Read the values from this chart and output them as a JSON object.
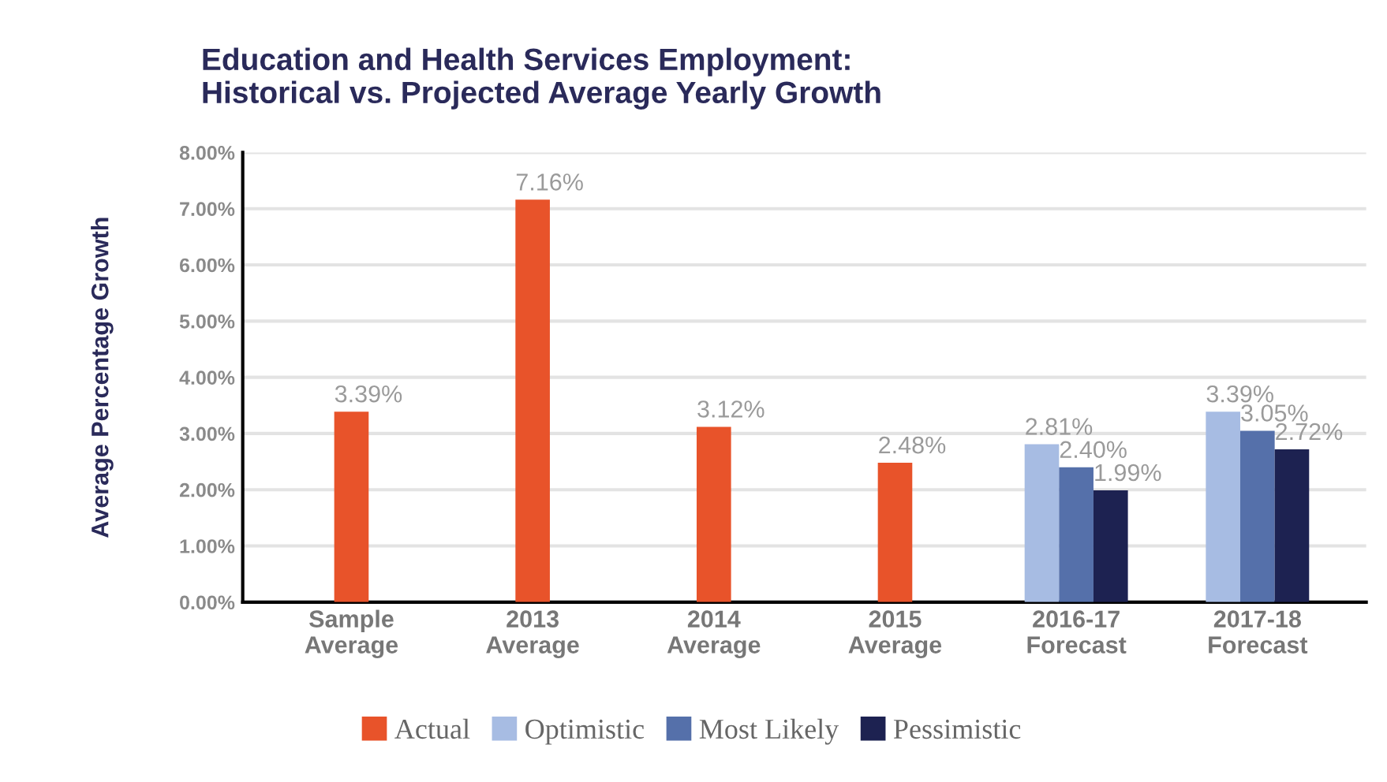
{
  "chart_data": {
    "type": "bar",
    "title": "Education and Health Services Employment:\nHistorical vs. Projected Average Yearly Growth",
    "ylabel": "Average Percentage Growth",
    "categories": [
      "Sample\nAverage",
      "2013\nAverage",
      "2014\nAverage",
      "2015\nAverage",
      "2016-17\nForecast",
      "2017-18\nForecast"
    ],
    "series": [
      {
        "name": "Actual",
        "color": "#e8532a",
        "values": [
          3.39,
          7.16,
          3.12,
          2.48,
          null,
          null
        ],
        "value_labels": [
          "3.39%",
          "7.16%",
          "3.12%",
          "2.48%",
          null,
          null
        ]
      },
      {
        "name": "Optimistic",
        "color": "#a7bce3",
        "values": [
          null,
          null,
          null,
          null,
          2.81,
          3.39
        ],
        "value_labels": [
          null,
          null,
          null,
          null,
          "2.81%",
          "3.39%"
        ]
      },
      {
        "name": "Most Likely",
        "color": "#5570aa",
        "values": [
          null,
          null,
          null,
          null,
          2.4,
          3.05
        ],
        "value_labels": [
          null,
          null,
          null,
          null,
          "2.40%",
          "3.05%"
        ]
      },
      {
        "name": "Pessimistic",
        "color": "#1d2251",
        "values": [
          null,
          null,
          null,
          null,
          1.99,
          2.72
        ],
        "value_labels": [
          null,
          null,
          null,
          null,
          "1.99%",
          "2.72%"
        ]
      }
    ],
    "ylim": [
      0,
      8
    ],
    "yticks": [
      {
        "value": 0,
        "label": "0.00%"
      },
      {
        "value": 1,
        "label": "1.00%"
      },
      {
        "value": 2,
        "label": "2.00%"
      },
      {
        "value": 3,
        "label": "3.00%"
      },
      {
        "value": 4,
        "label": "4.00%"
      },
      {
        "value": 5,
        "label": "5.00%"
      },
      {
        "value": 6,
        "label": "6.00%"
      },
      {
        "value": 7,
        "label": "7.00%"
      },
      {
        "value": 8,
        "label": "8.00%"
      }
    ],
    "grid": "y",
    "legend": "bottom"
  }
}
